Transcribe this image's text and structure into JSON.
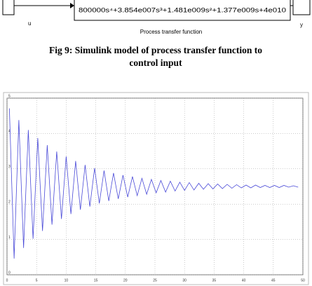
{
  "diagram": {
    "input_label": "u",
    "output_label": "y",
    "transfer_function": "800000s⁴+3.854e007s³+1.481e009s²+1.377e009s+4e010",
    "block_label": "Process transfer function"
  },
  "caption": [
    "Fig 9: Simulink model of process transfer function to",
    "control input"
  ],
  "chart_data": {
    "type": "line",
    "color": "#4a4ad8",
    "grid": true,
    "xlim": [
      0,
      50
    ],
    "xticks": [
      0,
      5,
      10,
      15,
      20,
      25,
      30,
      35,
      40,
      45,
      50
    ],
    "ylim": [
      0,
      5
    ],
    "yticks": [
      0,
      1,
      2,
      3,
      4,
      5
    ],
    "x": [
      0.4,
      1.2,
      2.0,
      2.8,
      3.6,
      4.4,
      5.2,
      6.0,
      6.8,
      7.6,
      8.4,
      9.2,
      10.0,
      10.8,
      11.6,
      12.4,
      13.2,
      14.0,
      14.8,
      15.6,
      16.4,
      17.2,
      18.0,
      18.8,
      19.6,
      20.4,
      21.2,
      22.0,
      22.8,
      23.6,
      24.4,
      25.2,
      26.0,
      26.8,
      27.6,
      28.4,
      29.2,
      30.0,
      30.8,
      31.6,
      32.4,
      33.2,
      34.0,
      34.8,
      35.6,
      36.4,
      37.2,
      38.0,
      38.8,
      39.6,
      40.4,
      41.2,
      42.0,
      42.8,
      43.6,
      44.4,
      45.2,
      46.0,
      46.8,
      47.6,
      48.4,
      49.2
    ],
    "values": [
      4.71,
      0.46,
      4.38,
      0.76,
      4.1,
      1.02,
      3.87,
      1.24,
      3.67,
      1.42,
      3.49,
      1.58,
      3.35,
      1.72,
      3.22,
      1.84,
      3.11,
      1.93,
      3.02,
      2.02,
      2.95,
      2.09,
      2.88,
      2.15,
      2.82,
      2.2,
      2.78,
      2.24,
      2.73,
      2.28,
      2.7,
      2.32,
      2.67,
      2.34,
      2.65,
      2.37,
      2.62,
      2.39,
      2.61,
      2.4,
      2.59,
      2.42,
      2.58,
      2.43,
      2.57,
      2.44,
      2.56,
      2.45,
      2.55,
      2.46,
      2.54,
      2.46,
      2.54,
      2.47,
      2.53,
      2.47,
      2.53,
      2.47,
      2.53,
      2.48,
      2.52,
      2.48
    ]
  }
}
